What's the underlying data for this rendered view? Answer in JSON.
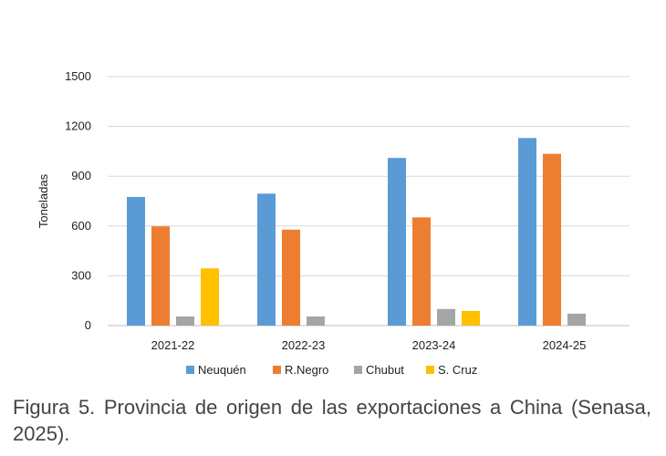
{
  "chart_data": {
    "type": "bar",
    "title": "",
    "xlabel": "",
    "ylabel": "Toneladas",
    "ylim": [
      0,
      1500
    ],
    "yticks": [
      0,
      300,
      600,
      900,
      1200,
      1500
    ],
    "ytick_labels": [
      "0",
      "300",
      "600",
      "900",
      "1200",
      "1500"
    ],
    "grid": true,
    "legend_position": "bottom",
    "categories": [
      "2021-22",
      "2022-23",
      "2023-24",
      "2024-25"
    ],
    "series": [
      {
        "name": "Neuquén",
        "color": "#5B9BD5",
        "values": [
          775,
          795,
          1010,
          1130
        ]
      },
      {
        "name": "R.Negro",
        "color": "#ED7D31",
        "values": [
          598,
          578,
          652,
          1035
        ]
      },
      {
        "name": "Chubut",
        "color": "#A5A5A5",
        "values": [
          55,
          55,
          100,
          72
        ]
      },
      {
        "name": "S. Cruz",
        "color": "#FFC000",
        "values": [
          345,
          0,
          88,
          0
        ]
      }
    ]
  },
  "caption": {
    "line1": "Figura 5. Provincia de origen de las exportaciones a China",
    "line2": "(Senasa, 2025)."
  }
}
